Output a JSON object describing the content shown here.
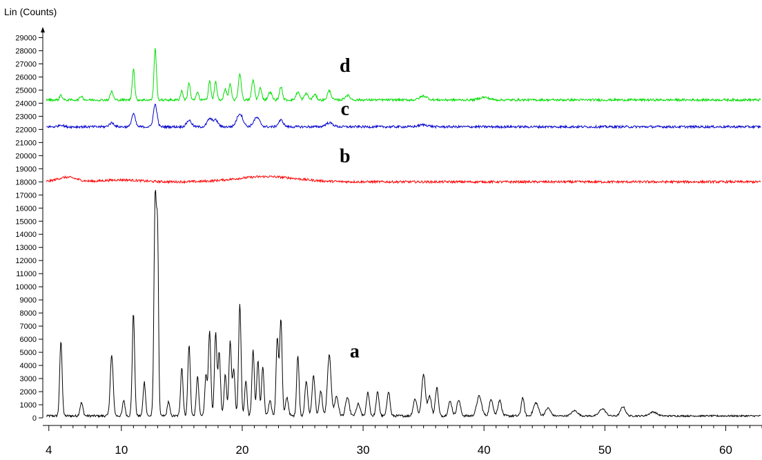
{
  "chart_data": {
    "type": "line",
    "ylabel": "Lin (Counts)",
    "xlabel": "",
    "xlim": [
      3.5,
      63
    ],
    "ylim": [
      0,
      29500
    ],
    "x_ticks": [
      4,
      10,
      20,
      30,
      40,
      50,
      60
    ],
    "y_ticks": [
      0,
      1000,
      2000,
      3000,
      4000,
      5000,
      6000,
      7000,
      8000,
      9000,
      10000,
      11000,
      12000,
      13000,
      14000,
      15000,
      16000,
      17000,
      18000,
      19000,
      20000,
      21000,
      22000,
      23000,
      24000,
      25000,
      26000,
      27000,
      28000,
      29000
    ],
    "grid": false,
    "series": [
      {
        "name": "a",
        "color": "#000000",
        "baseline": 150,
        "peaks": [
          [
            5.0,
            5700,
            0.1
          ],
          [
            6.7,
            1000,
            0.12
          ],
          [
            9.2,
            4600,
            0.12
          ],
          [
            10.2,
            1200,
            0.1
          ],
          [
            11.0,
            7800,
            0.1
          ],
          [
            11.9,
            2600,
            0.1
          ],
          [
            12.8,
            16700,
            0.1
          ],
          [
            13.0,
            12700,
            0.08
          ],
          [
            13.9,
            1100,
            0.1
          ],
          [
            15.0,
            3700,
            0.1
          ],
          [
            15.6,
            5400,
            0.1
          ],
          [
            16.3,
            3000,
            0.1
          ],
          [
            17.0,
            3100,
            0.1
          ],
          [
            17.3,
            6400,
            0.1
          ],
          [
            17.8,
            6300,
            0.1
          ],
          [
            18.1,
            4800,
            0.1
          ],
          [
            18.6,
            3200,
            0.1
          ],
          [
            19.0,
            5700,
            0.1
          ],
          [
            19.3,
            3600,
            0.1
          ],
          [
            19.8,
            8600,
            0.1
          ],
          [
            20.3,
            2700,
            0.1
          ],
          [
            20.9,
            5000,
            0.1
          ],
          [
            21.3,
            4200,
            0.1
          ],
          [
            21.7,
            3800,
            0.1
          ],
          [
            22.3,
            1100,
            0.12
          ],
          [
            22.9,
            6000,
            0.1
          ],
          [
            23.2,
            7400,
            0.1
          ],
          [
            23.7,
            1400,
            0.12
          ],
          [
            24.6,
            4600,
            0.1
          ],
          [
            25.3,
            2600,
            0.12
          ],
          [
            25.9,
            3100,
            0.12
          ],
          [
            26.5,
            1900,
            0.12
          ],
          [
            27.2,
            4600,
            0.15
          ],
          [
            27.8,
            1500,
            0.15
          ],
          [
            28.7,
            1400,
            0.15
          ],
          [
            29.6,
            900,
            0.15
          ],
          [
            30.4,
            1800,
            0.12
          ],
          [
            31.2,
            1800,
            0.12
          ],
          [
            32.1,
            1900,
            0.12
          ],
          [
            34.3,
            1300,
            0.15
          ],
          [
            35.0,
            3200,
            0.15
          ],
          [
            35.5,
            1500,
            0.15
          ],
          [
            36.1,
            2200,
            0.12
          ],
          [
            37.2,
            1100,
            0.15
          ],
          [
            37.9,
            1200,
            0.15
          ],
          [
            39.6,
            1500,
            0.2
          ],
          [
            40.6,
            1300,
            0.15
          ],
          [
            41.3,
            1200,
            0.15
          ],
          [
            43.2,
            1400,
            0.12
          ],
          [
            44.3,
            1000,
            0.2
          ],
          [
            45.3,
            600,
            0.2
          ],
          [
            47.5,
            400,
            0.25
          ],
          [
            49.8,
            550,
            0.25
          ],
          [
            51.5,
            700,
            0.2
          ],
          [
            54.0,
            300,
            0.3
          ]
        ]
      },
      {
        "name": "b",
        "color": "#ff0000",
        "baseline": 18000,
        "humps": [
          [
            5.5,
            350,
            0.8
          ],
          [
            10.0,
            150,
            1.5
          ],
          [
            22.0,
            400,
            2.5
          ]
        ]
      },
      {
        "name": "c",
        "color": "#0000cc",
        "baseline": 22200,
        "peaks": [
          [
            5.0,
            150,
            0.2
          ],
          [
            9.2,
            300,
            0.2
          ],
          [
            11.0,
            1000,
            0.15
          ],
          [
            12.8,
            1700,
            0.15
          ],
          [
            15.6,
            500,
            0.2
          ],
          [
            17.3,
            600,
            0.2
          ],
          [
            17.8,
            500,
            0.2
          ],
          [
            19.8,
            1000,
            0.25
          ],
          [
            21.2,
            700,
            0.25
          ],
          [
            23.2,
            500,
            0.2
          ],
          [
            27.2,
            300,
            0.3
          ],
          [
            35.0,
            150,
            0.4
          ]
        ]
      },
      {
        "name": "d",
        "color": "#00dd00",
        "baseline": 24250,
        "peaks": [
          [
            5.0,
            400,
            0.1
          ],
          [
            6.7,
            300,
            0.12
          ],
          [
            9.2,
            650,
            0.12
          ],
          [
            11.0,
            2400,
            0.1
          ],
          [
            12.8,
            3900,
            0.1
          ],
          [
            15.0,
            700,
            0.1
          ],
          [
            15.6,
            1300,
            0.1
          ],
          [
            16.3,
            600,
            0.1
          ],
          [
            17.3,
            1500,
            0.1
          ],
          [
            17.8,
            1400,
            0.1
          ],
          [
            18.6,
            800,
            0.12
          ],
          [
            19.0,
            1200,
            0.1
          ],
          [
            19.8,
            2000,
            0.12
          ],
          [
            20.9,
            1500,
            0.12
          ],
          [
            21.5,
            900,
            0.12
          ],
          [
            22.3,
            600,
            0.15
          ],
          [
            23.2,
            1000,
            0.12
          ],
          [
            24.6,
            600,
            0.15
          ],
          [
            25.3,
            500,
            0.15
          ],
          [
            26.0,
            400,
            0.15
          ],
          [
            27.2,
            700,
            0.15
          ],
          [
            28.7,
            350,
            0.2
          ],
          [
            35.0,
            300,
            0.3
          ],
          [
            40.0,
            200,
            0.4
          ]
        ]
      }
    ],
    "annotations": [
      {
        "text": "d",
        "x": 28.5,
        "y": 26400
      },
      {
        "text": "c",
        "x": 28.5,
        "y": 23100
      },
      {
        "text": "b",
        "x": 28.5,
        "y": 19500
      },
      {
        "text": "a",
        "x": 29.3,
        "y": 4600
      }
    ]
  }
}
